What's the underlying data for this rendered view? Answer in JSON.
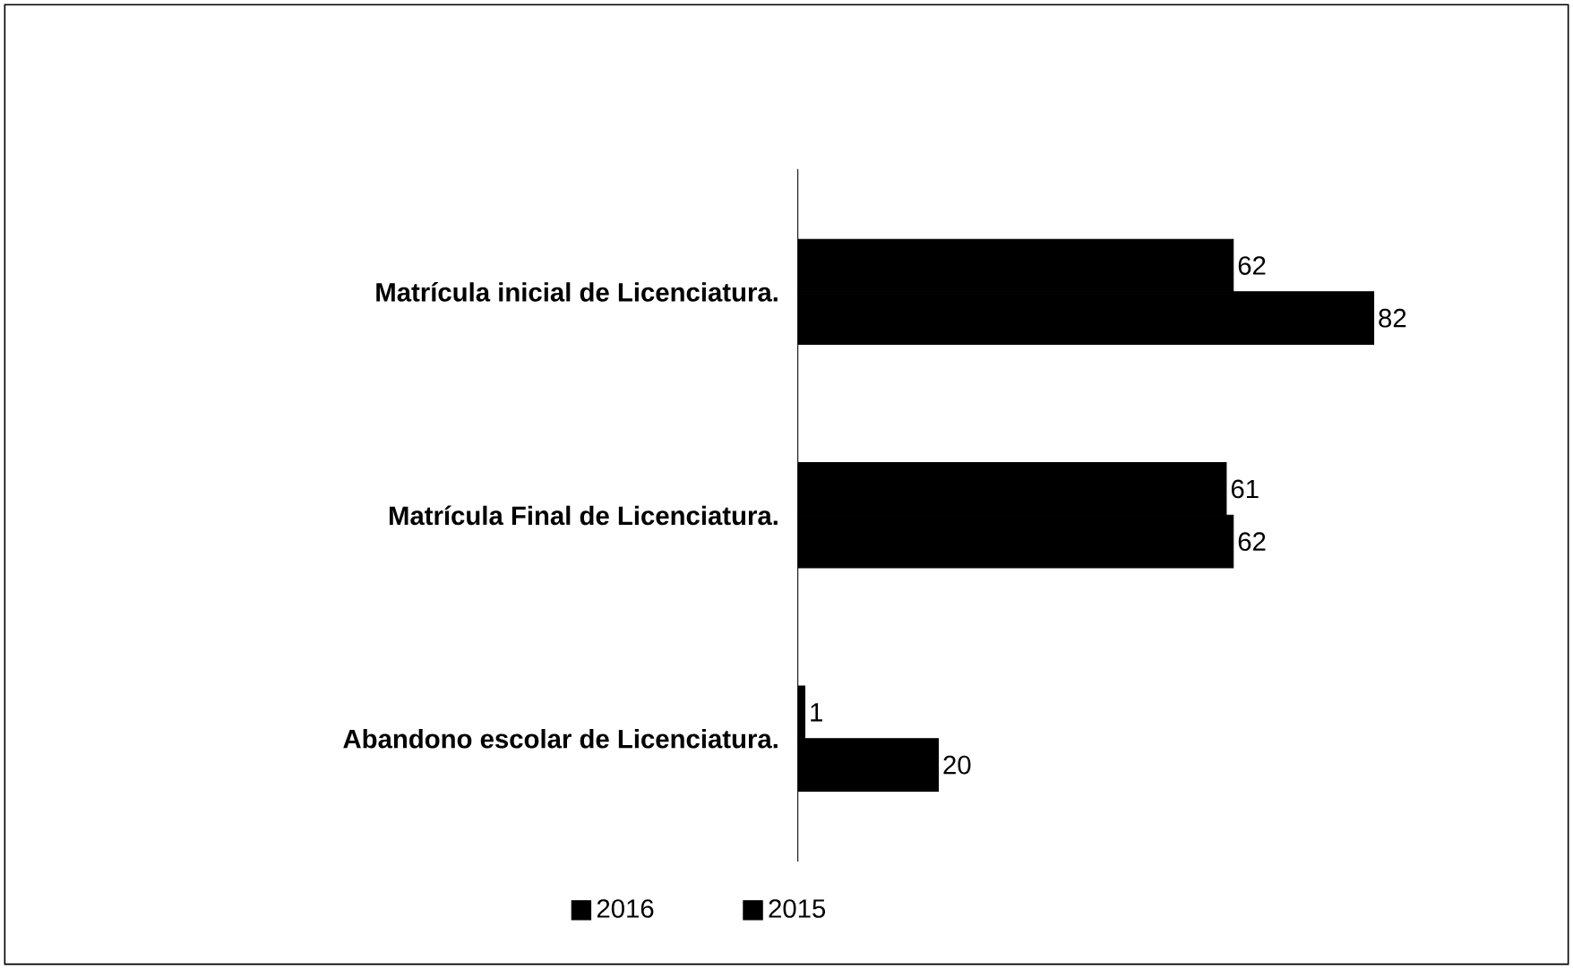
{
  "chart_data": {
    "type": "bar",
    "orientation": "horizontal",
    "categories": [
      "Matrícula inicial de Licenciatura.",
      "Matrícula Final de Licenciatura.",
      "Abandono escolar de Licenciatura."
    ],
    "series": [
      {
        "name": "2016",
        "color": "#000000",
        "values": [
          62,
          61,
          1
        ]
      },
      {
        "name": "2015",
        "color": "#000000",
        "values": [
          82,
          62,
          20
        ]
      }
    ],
    "data_labels": true,
    "legend": "bottom"
  }
}
